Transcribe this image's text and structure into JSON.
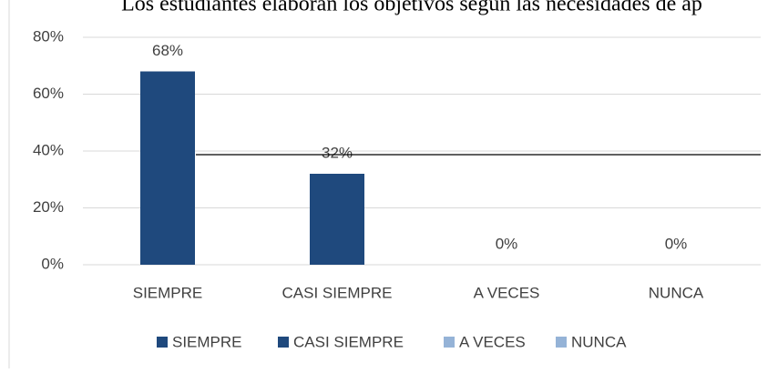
{
  "chart_data": {
    "type": "bar",
    "title": "Los estudiantes elaboran los objetivos según las necesidades de ap",
    "categories": [
      "SIEMPRE",
      "CASI SIEMPRE",
      "A VECES",
      "NUNCA"
    ],
    "values": [
      68,
      32,
      0,
      0
    ],
    "value_labels": [
      "68%",
      "32%",
      "0%",
      "0%"
    ],
    "colors": [
      "#1f497d",
      "#1f497d",
      "#95b3d7",
      "#95b3d7"
    ],
    "ylim": [
      0,
      80
    ],
    "yticks": [
      {
        "value": 0,
        "label": "0%"
      },
      {
        "value": 20,
        "label": "20%"
      },
      {
        "value": 40,
        "label": "40%"
      },
      {
        "value": 60,
        "label": "60%"
      },
      {
        "value": 80,
        "label": "80%"
      }
    ],
    "grid": true,
    "legend": "bottom"
  }
}
